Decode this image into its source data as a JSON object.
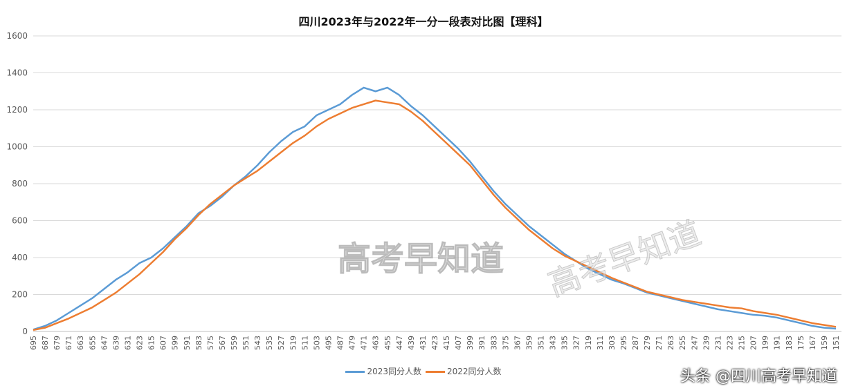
{
  "chart_data": {
    "type": "line",
    "title": "四川2023年与2022年一分一段表对比图【理科】",
    "xlabel": "",
    "ylabel": "",
    "ylim": [
      0,
      1600
    ],
    "yticks": [
      0,
      200,
      400,
      600,
      800,
      1000,
      1200,
      1400,
      1600
    ],
    "grid": true,
    "legend_position": "bottom",
    "x": [
      695,
      687,
      679,
      671,
      663,
      655,
      647,
      639,
      631,
      623,
      615,
      607,
      599,
      591,
      583,
      575,
      567,
      559,
      551,
      543,
      535,
      527,
      519,
      511,
      503,
      495,
      487,
      479,
      471,
      463,
      455,
      447,
      439,
      431,
      423,
      415,
      407,
      399,
      391,
      383,
      375,
      367,
      359,
      351,
      343,
      335,
      327,
      319,
      311,
      303,
      295,
      287,
      279,
      271,
      263,
      255,
      247,
      239,
      231,
      223,
      215,
      207,
      199,
      191,
      183,
      175,
      167,
      159,
      151
    ],
    "series": [
      {
        "name": "2023同分人数",
        "color": "#5B9BD5",
        "values": [
          10,
          30,
          60,
          100,
          140,
          180,
          230,
          280,
          320,
          370,
          400,
          450,
          510,
          570,
          640,
          680,
          730,
          790,
          840,
          900,
          970,
          1030,
          1080,
          1110,
          1170,
          1200,
          1230,
          1280,
          1320,
          1300,
          1320,
          1280,
          1220,
          1170,
          1110,
          1050,
          990,
          920,
          840,
          760,
          690,
          630,
          570,
          520,
          470,
          420,
          380,
          340,
          310,
          280,
          260,
          235,
          210,
          195,
          180,
          165,
          150,
          135,
          120,
          110,
          100,
          90,
          85,
          75,
          60,
          45,
          30,
          20,
          15
        ]
      },
      {
        "name": "2022同分人数",
        "color": "#ED7D31",
        "values": [
          8,
          20,
          45,
          70,
          100,
          130,
          170,
          210,
          260,
          310,
          370,
          430,
          500,
          560,
          630,
          690,
          740,
          790,
          830,
          870,
          920,
          970,
          1020,
          1060,
          1110,
          1150,
          1180,
          1210,
          1230,
          1250,
          1240,
          1230,
          1190,
          1140,
          1080,
          1020,
          960,
          900,
          820,
          740,
          670,
          610,
          550,
          500,
          450,
          410,
          380,
          350,
          320,
          290,
          265,
          240,
          215,
          200,
          185,
          170,
          160,
          150,
          140,
          130,
          125,
          110,
          100,
          90,
          75,
          60,
          45,
          35,
          25
        ]
      }
    ]
  },
  "watermark": {
    "text1": "高考早知道",
    "text2": "高考早知道"
  },
  "credit": "头条 @四川高考早知道"
}
